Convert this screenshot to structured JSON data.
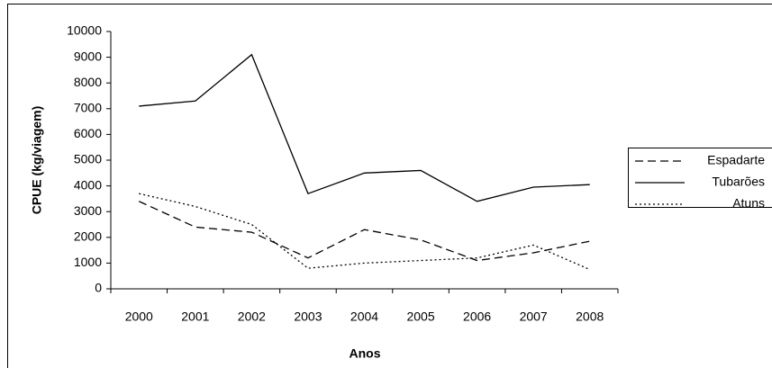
{
  "chart_data": {
    "type": "line",
    "x_label": "Anos",
    "y_label": "CPUE (kg/viagem)",
    "categories": [
      "2000",
      "2001",
      "2002",
      "2003",
      "2004",
      "2005",
      "2006",
      "2007",
      "2008"
    ],
    "series": [
      {
        "name": "Espadarte",
        "color": "#000000",
        "style": "dashed",
        "values": [
          3400,
          2400,
          2200,
          1200,
          2300,
          1900,
          1100,
          1400,
          1850
        ]
      },
      {
        "name": "Tubarões",
        "color": "#000000",
        "style": "solid",
        "values": [
          7100,
          7300,
          9100,
          3700,
          4500,
          4600,
          3400,
          3950,
          4050
        ]
      },
      {
        "name": "Atuns",
        "color": "#000000",
        "style": "dotted",
        "values": [
          3700,
          3200,
          2500,
          800,
          1000,
          1100,
          1200,
          1700,
          750
        ]
      }
    ],
    "ylim": [
      0,
      10000
    ],
    "yticks": [
      0,
      1000,
      2000,
      3000,
      4000,
      5000,
      6000,
      7000,
      8000,
      9000,
      10000
    ],
    "grid": false,
    "legend": "right"
  }
}
